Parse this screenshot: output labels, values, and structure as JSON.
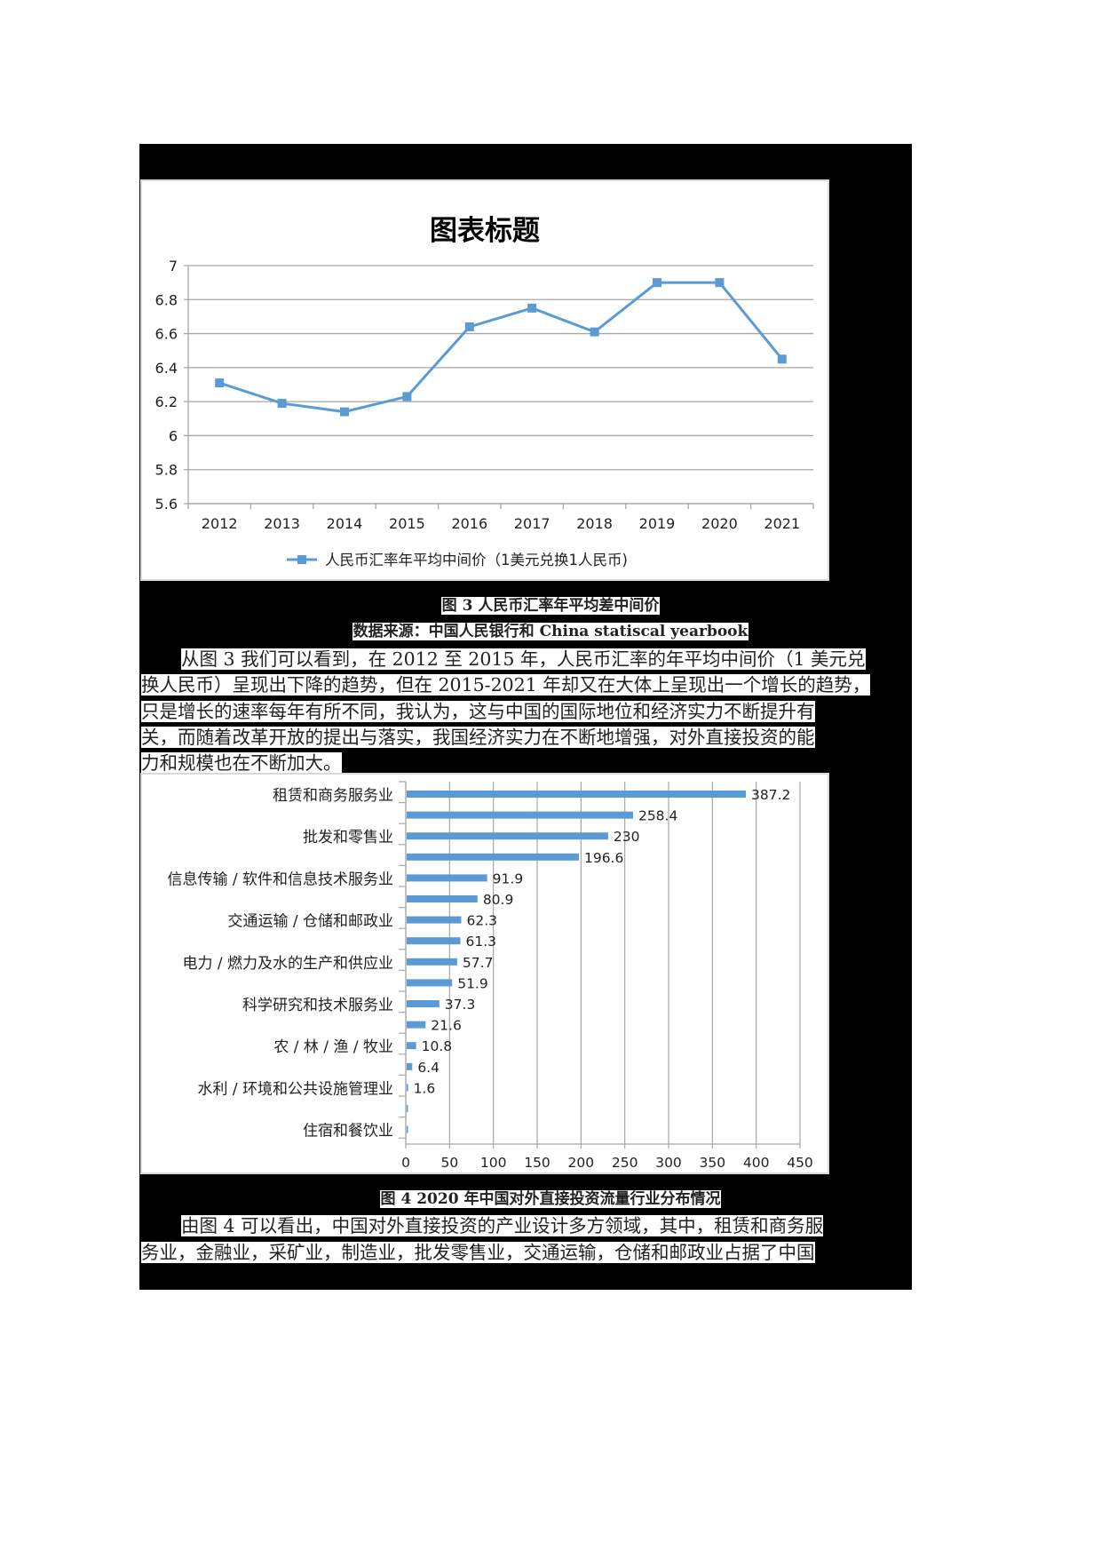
{
  "figure3": {
    "caption": "图 3 人民币汇率年平均差中间价",
    "source": "数据来源：中国人民银行和 China statiscal yearbook"
  },
  "paragraph1": {
    "lines": [
      "从图 3 我们可以看到，在 2012 至 2015 年，人民币汇率的年平均中间价（1 美元兑",
      "换人民币）呈现出下降的趋势，但在 2015-2021 年却又在大体上呈现出一个增长的趋势，",
      "只是增长的速率每年有所不同，我认为，这与中国的国际地位和经济实力不断提升有",
      "关，而随着改革开放的提出与落实，我国经济实力在不断地增强，对外直接投资的能",
      "力和规模也在不断加大。"
    ]
  },
  "figure4": {
    "caption": "图 4 2020 年中国对外直接投资流量行业分布情况"
  },
  "paragraph2": {
    "lines": [
      "由图 4 可以看出，中国对外直接投资的产业设计多方领域，其中，租赁和商务服",
      "务业，金融业，采矿业，制造业，批发零售业，交通运输，仓储和邮政业占据了中国"
    ]
  },
  "colors": {
    "series": "#5b9bd5",
    "grid": "#a6a6a6",
    "text": "#222222"
  },
  "chart_data": [
    {
      "type": "line",
      "title": "图表标题",
      "categories": [
        "2012",
        "2013",
        "2014",
        "2015",
        "2016",
        "2017",
        "2018",
        "2019",
        "2020",
        "2021"
      ],
      "series": [
        {
          "name": "人民币汇率年平均中间价（1美元兑换1人民币)",
          "values": [
            6.31,
            6.19,
            6.14,
            6.23,
            6.64,
            6.75,
            6.61,
            6.9,
            6.9,
            6.45
          ]
        }
      ],
      "xlabel": "",
      "ylabel": "",
      "ylim": [
        5.6,
        7
      ],
      "yticks": [
        "7",
        "6.8",
        "6.6",
        "6.4",
        "6.2",
        "6",
        "5.8",
        "5.6"
      ],
      "grid": true,
      "legend_position": "bottom",
      "marker": "square"
    },
    {
      "type": "bar",
      "orientation": "horizontal",
      "title": "",
      "categories": [
        "租赁和商务服务业",
        "",
        "批发和零售业",
        "",
        "信息传输 / 软件和信息技术服务业",
        "",
        "交通运输 / 仓储和邮政业",
        "",
        "电力 / 燃力及水的生产和供应业",
        "",
        "科学研究和技术服务业",
        "",
        "农 / 林 / 渔 / 牧业",
        "",
        "水利 / 环境和公共设施管理业",
        "",
        "住宿和餐饮业"
      ],
      "values": [
        387.2,
        258.4,
        230,
        196.6,
        91.9,
        80.9,
        62.3,
        61.3,
        57.7,
        51.9,
        37.3,
        21.6,
        10.8,
        6.4,
        1.6,
        0.4,
        0.3
      ],
      "value_labels": [
        "387.2",
        "258.4",
        "230",
        "196.6",
        "91.9",
        "80.9",
        "62.3",
        "61.3",
        "57.7",
        "51.9",
        "37.3",
        "21.6",
        "10.8",
        "6.4",
        "1.6",
        "",
        ""
      ],
      "xlim": [
        0,
        450
      ],
      "xticks": [
        "0",
        "50",
        "100",
        "150",
        "200",
        "250",
        "300",
        "350",
        "400",
        "450"
      ],
      "grid": true
    }
  ]
}
